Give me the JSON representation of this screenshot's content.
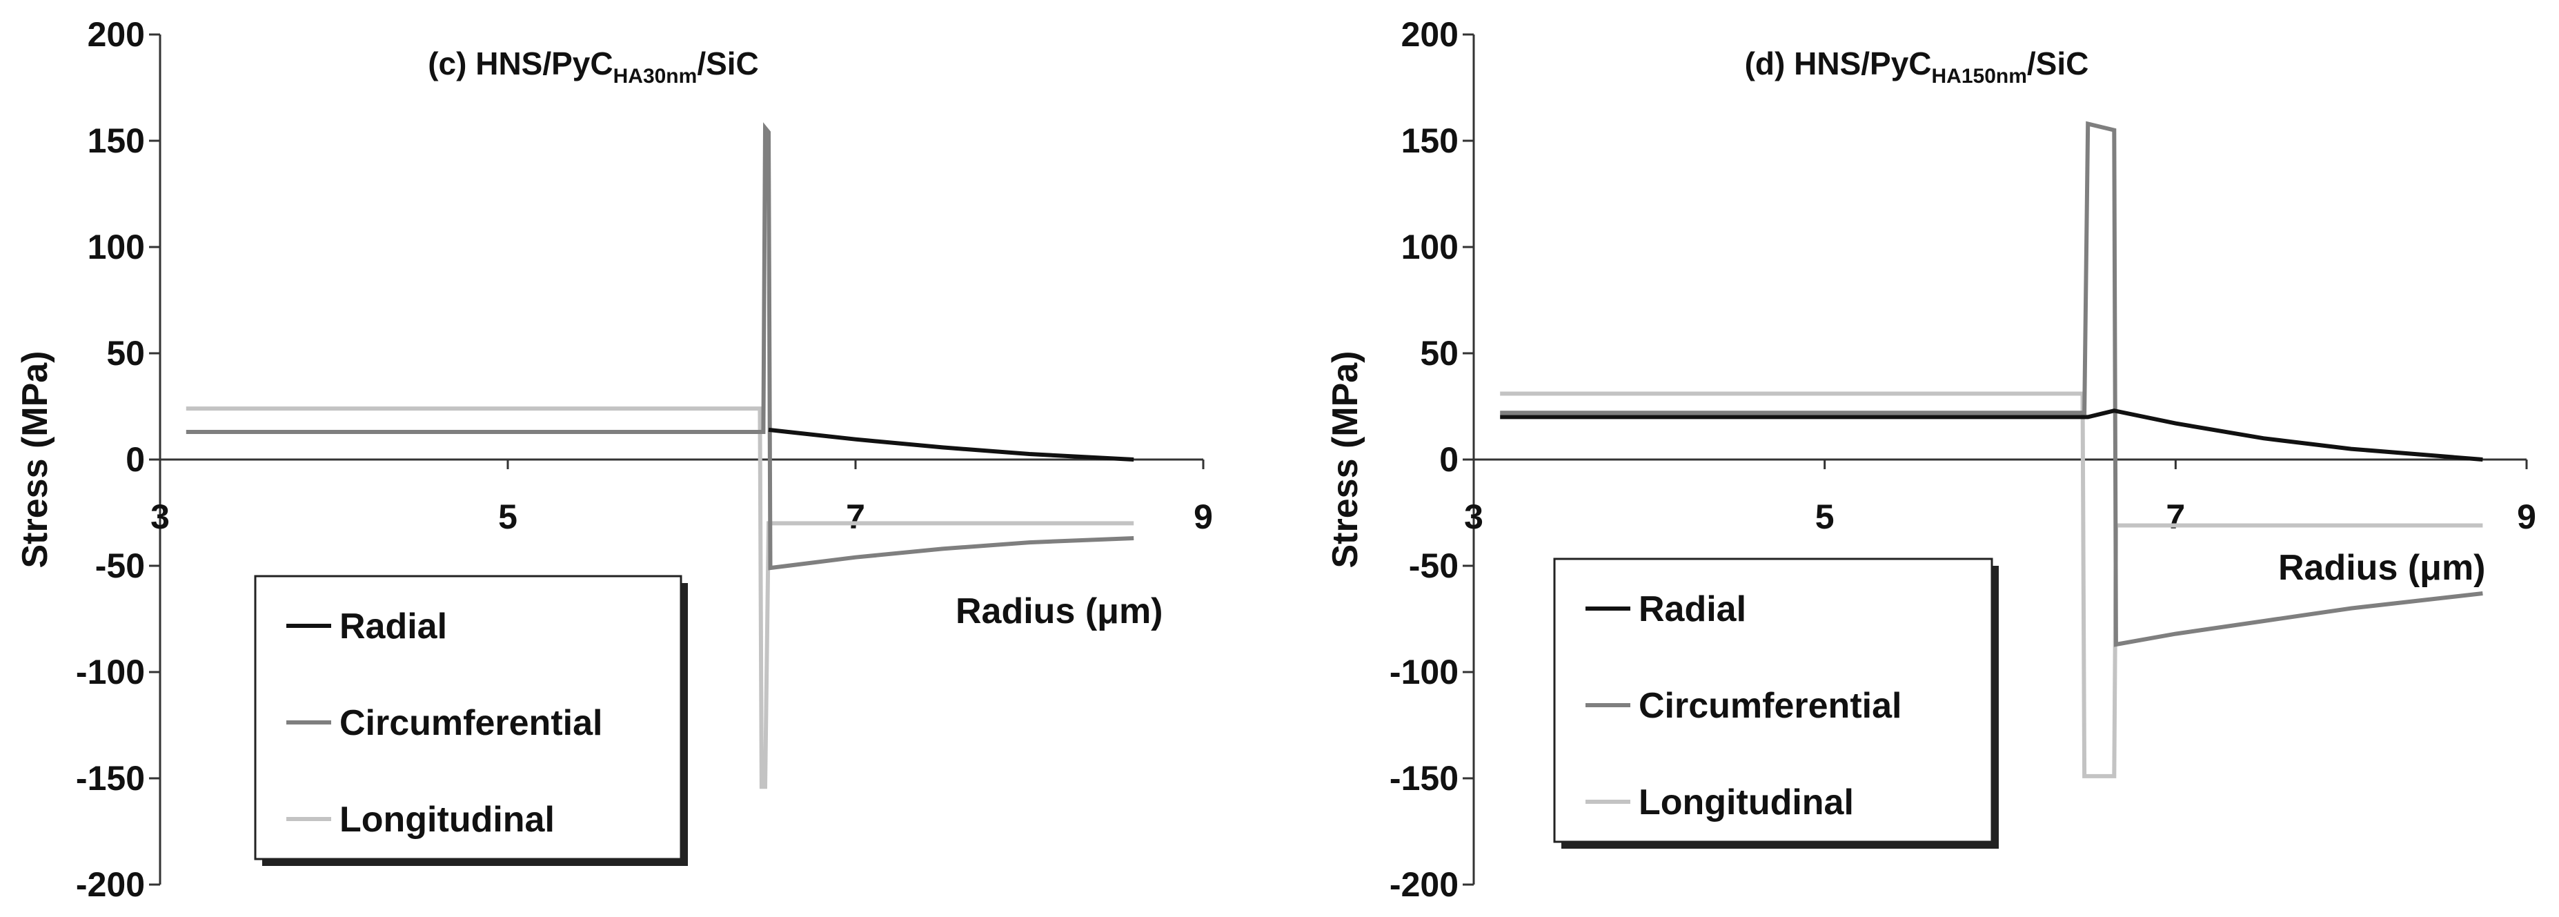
{
  "chart_data": [
    {
      "type": "line",
      "title": {
        "main": "(c) HNS/PyC",
        "sub": "HA30nm",
        "suffix": "/SiC"
      },
      "xlabel": "Radius (μm)",
      "ylabel": "Stress (MPa)",
      "xlim": [
        3,
        9
      ],
      "ylim": [
        -200,
        200
      ],
      "xticks": [
        3,
        5,
        7,
        9
      ],
      "yticks": [
        200,
        150,
        100,
        50,
        0,
        -50,
        -100,
        -150,
        -200
      ],
      "grid": false,
      "legend_position": "bottom-left",
      "series": [
        {
          "name": "Radial",
          "color": "#111111",
          "x": [
            6.5,
            7.0,
            7.5,
            8.0,
            8.6
          ],
          "y": [
            14,
            9.5,
            5.7,
            2.6,
            0
          ]
        },
        {
          "name": "Circumferential",
          "color": "#7f7f7f",
          "x": [
            3.15,
            6.47,
            6.48,
            6.5,
            6.51,
            7.0,
            7.5,
            8.0,
            8.6
          ],
          "y": [
            13,
            13,
            156,
            154,
            -51,
            -46,
            -42,
            -39,
            -37
          ]
        },
        {
          "name": "Longitudinal",
          "color": "#c3c3c3",
          "x": [
            3.15,
            6.45,
            6.46,
            6.48,
            6.5,
            8.6
          ],
          "y": [
            24,
            24,
            -154,
            -154,
            -30,
            -30
          ]
        }
      ]
    },
    {
      "type": "line",
      "title": {
        "main": "(d) HNS/PyC",
        "sub": "HA150nm",
        "suffix": "/SiC"
      },
      "xlabel": "Radius (μm)",
      "ylabel": "Stress (MPa)",
      "xlim": [
        3,
        9
      ],
      "ylim": [
        -200,
        200
      ],
      "xticks": [
        3,
        5,
        7,
        9
      ],
      "yticks": [
        200,
        150,
        100,
        50,
        0,
        -50,
        -100,
        -150,
        -200
      ],
      "grid": false,
      "legend_position": "bottom-left",
      "series": [
        {
          "name": "Radial",
          "color": "#111111",
          "x": [
            3.15,
            6.5,
            6.65,
            7.0,
            7.5,
            8.0,
            8.75
          ],
          "y": [
            20,
            20,
            23,
            17,
            10,
            5,
            0
          ]
        },
        {
          "name": "Circumferential",
          "color": "#7f7f7f",
          "x": [
            3.15,
            6.48,
            6.5,
            6.65,
            6.66,
            7.0,
            7.5,
            8.0,
            8.75
          ],
          "y": [
            22,
            22,
            158,
            155,
            -87,
            -82,
            -76,
            -70,
            -63
          ]
        },
        {
          "name": "Longitudinal",
          "color": "#c3c3c3",
          "x": [
            3.15,
            6.47,
            6.48,
            6.65,
            6.66,
            8.75
          ],
          "y": [
            31,
            31,
            -149,
            -149,
            -31,
            -31
          ]
        }
      ]
    }
  ]
}
